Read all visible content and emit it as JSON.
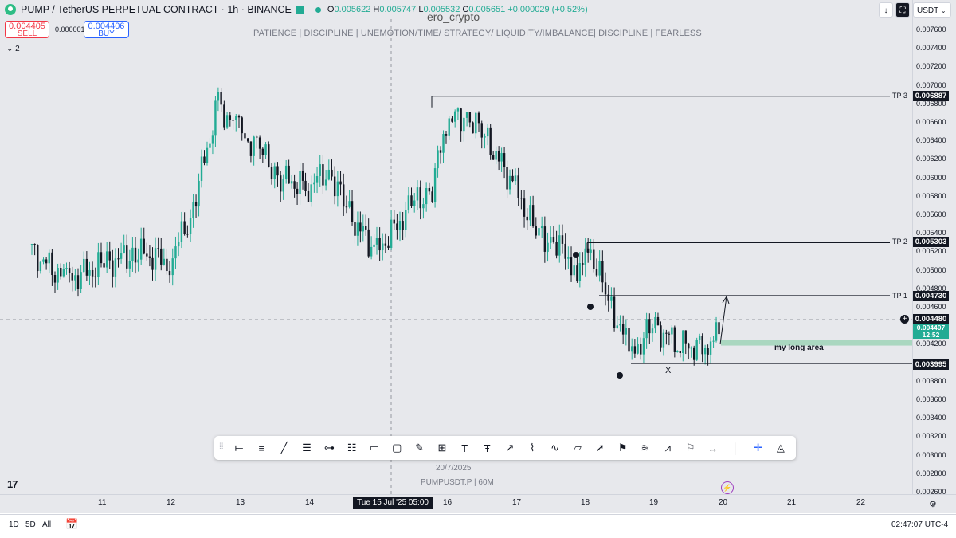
{
  "header": {
    "symbol_title": "PUMP / TetherUS PERPETUAL CONTRACT · 1h · BINANCE",
    "ohlc": [
      {
        "key": "O",
        "value": "0.005622"
      },
      {
        "key": "H",
        "value": "0.005747"
      },
      {
        "key": "L",
        "value": "0.005532"
      },
      {
        "key": "C",
        "value": "0.005651"
      }
    ],
    "change": "+0.000029 (+0.52%)",
    "watermark": "ero_crypto",
    "currency": "USDT",
    "layers_label": "2"
  },
  "trade": {
    "sell_price": "0.004405",
    "sell_label": "SELL",
    "spread": "0.000001",
    "buy_price": "0.004406",
    "buy_label": "BUY"
  },
  "motto": "PATIENCE | DISCIPLINE | UNEMOTION/TIME/ STRATEGY/ LIQUIDITY/IMBALANCE| DISCIPLINE | FEARLESS",
  "price_scale": {
    "labels": [
      "0.007600",
      "0.007400",
      "0.007200",
      "0.007000",
      "0.006800",
      "0.006600",
      "0.006400",
      "0.006200",
      "0.006000",
      "0.005800",
      "0.005600",
      "0.005400",
      "0.005200",
      "0.005000",
      "0.004800",
      "0.004600",
      "0.004200",
      "0.003800",
      "0.003600",
      "0.003400",
      "0.003200",
      "0.003000",
      "0.002800",
      "0.002600"
    ],
    "tp3": "0.006887",
    "tp2": "0.005303",
    "tp1": "0.004730",
    "crosshair": "0.004480",
    "current": "0.004407",
    "countdown": "12:52",
    "low_line": "0.003995"
  },
  "annotations": {
    "tp3_label": "TP 3",
    "tp2_label": "TP 2",
    "tp1_label": "TP 1",
    "long_area_label": "my long area",
    "x_label": "X",
    "bottom_date": "20/7/2025",
    "bottom_symbol": "PUMPUSDT.P | 60M"
  },
  "time_scale": {
    "labels": [
      "11",
      "12",
      "13",
      "14",
      "16",
      "17",
      "18",
      "19",
      "20",
      "21",
      "22"
    ],
    "crosshair": "Tue 15 Jul '25  05:00"
  },
  "bottom_bar": {
    "ranges": [
      "1D",
      "5D",
      "All"
    ],
    "clock": "02:47:07 UTC-4"
  },
  "toolbar": {
    "tools": [
      "horizontal-ray",
      "parallel-channel",
      "trend-line",
      "horizontal-lines",
      "horizontal-segment",
      "fib-levels",
      "rectangle",
      "rectangle-alt",
      "brush",
      "long-position",
      "text",
      "anchored-text",
      "price-note",
      "path",
      "curve",
      "callout",
      "arrow",
      "flag",
      "fib-fan",
      "pattern",
      "signpost",
      "date-range",
      "vertical-line",
      "crosshair",
      "magic"
    ]
  },
  "colors": {
    "up": "#22ab94",
    "down": "#131722",
    "long_zone": "#9fd4b8",
    "sell": "#f23645",
    "buy": "#2962ff"
  },
  "chart_data": {
    "type": "candlestick",
    "ylim": [
      0.0026,
      0.0077
    ],
    "x_ticks": [
      "11",
      "12",
      "13",
      "14",
      "15",
      "16",
      "17",
      "18",
      "19",
      "20",
      "21",
      "22"
    ],
    "series": [
      {
        "name": "PUMPUSDT.P",
        "close_path": [
          [
            "10",
            0.0052
          ],
          [
            "10.5",
            0.0049
          ],
          [
            "11",
            0.00505
          ],
          [
            "11.5",
            0.0052
          ],
          [
            "12",
            0.0051
          ],
          [
            "12.3",
            0.0056
          ],
          [
            "12.7",
            0.0068
          ],
          [
            "13",
            0.0065
          ],
          [
            "13.3",
            0.0063
          ],
          [
            "13.6",
            0.006
          ],
          [
            "14",
            0.0059
          ],
          [
            "14.3",
            0.0061
          ],
          [
            "14.6",
            0.0056
          ],
          [
            "15",
            0.0052
          ],
          [
            "15.5",
            0.0057
          ],
          [
            "15.8",
            0.0059
          ],
          [
            "16",
            0.0066
          ],
          [
            "16.3",
            0.0067
          ],
          [
            "16.6",
            0.0064
          ],
          [
            "17",
            0.0059
          ],
          [
            "17.3",
            0.0054
          ],
          [
            "17.6",
            0.0053
          ],
          [
            "17.9",
            0.005
          ],
          [
            "18.1",
            0.0052
          ],
          [
            "18.4",
            0.0046
          ],
          [
            "18.7",
            0.0041
          ],
          [
            "19",
            0.0044
          ],
          [
            "19.4",
            0.0042
          ],
          [
            "19.8",
            0.00415
          ],
          [
            "20",
            0.0044
          ]
        ]
      }
    ],
    "levels": [
      {
        "label": "TP 3",
        "value": 0.006887
      },
      {
        "label": "TP 2",
        "value": 0.005303
      },
      {
        "label": "TP 1",
        "value": 0.00473
      },
      {
        "label": "",
        "value": 0.003995
      }
    ],
    "zones": [
      {
        "label": "my long area",
        "from": 0.00419,
        "to": 0.00425
      }
    ]
  }
}
